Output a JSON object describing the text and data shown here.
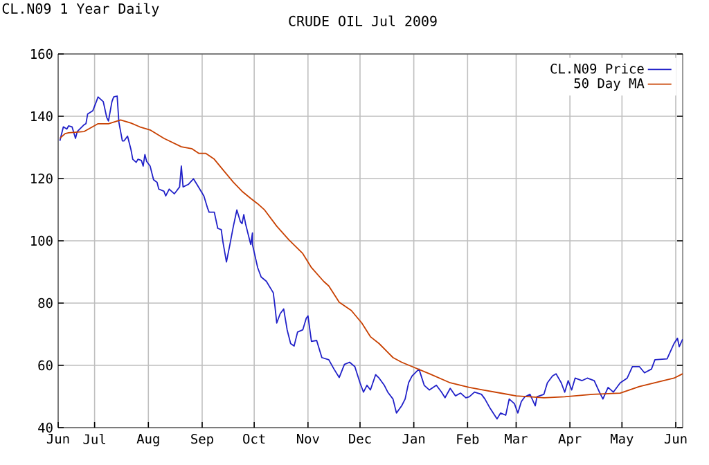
{
  "chart_data": {
    "type": "line",
    "title": "CRUDE OIL Jul 2009",
    "annotations": [
      "CL.N09 1 Year Daily"
    ],
    "xlim": [
      "2008-06-10",
      "2009-06-05"
    ],
    "xticks": [
      {
        "value": "2008-06-10",
        "label": "Jun"
      },
      {
        "value": "2008-07-01",
        "label": "Jul"
      },
      {
        "value": "2008-08-01",
        "label": "Aug"
      },
      {
        "value": "2008-09-01",
        "label": "Sep"
      },
      {
        "value": "2008-10-01",
        "label": "Oct"
      },
      {
        "value": "2008-11-01",
        "label": "Nov"
      },
      {
        "value": "2008-12-01",
        "label": "Dec"
      },
      {
        "value": "2009-01-01",
        "label": "Jan"
      },
      {
        "value": "2009-02-01",
        "label": "Feb"
      },
      {
        "value": "2009-03-01",
        "label": "Mar"
      },
      {
        "value": "2009-04-01",
        "label": "Apr"
      },
      {
        "value": "2009-05-01",
        "label": "May"
      },
      {
        "value": "2009-06-01",
        "label": "Jun"
      }
    ],
    "ylim": [
      40,
      160
    ],
    "yticks": [
      40,
      60,
      80,
      100,
      120,
      140,
      160
    ],
    "grid": true,
    "legend": "top right",
    "series": [
      {
        "name": "CL.N09 Price",
        "color": "#2020c8",
        "x": [
          "2008-06-11",
          "2008-06-12",
          "2008-06-13",
          "2008-06-15",
          "2008-06-16",
          "2008-06-18",
          "2008-06-20",
          "2008-06-21",
          "2008-06-25",
          "2008-06-26",
          "2008-06-27",
          "2008-06-30",
          "2008-07-02",
          "2008-07-03",
          "2008-07-06",
          "2008-07-08",
          "2008-07-09",
          "2008-07-11",
          "2008-07-12",
          "2008-07-14",
          "2008-07-15",
          "2008-07-17",
          "2008-07-18",
          "2008-07-20",
          "2008-07-22",
          "2008-07-23",
          "2008-07-25",
          "2008-07-26",
          "2008-07-28",
          "2008-07-29",
          "2008-07-30",
          "2008-07-31",
          "2008-08-02",
          "2008-08-04",
          "2008-08-06",
          "2008-08-07",
          "2008-08-10",
          "2008-08-11",
          "2008-08-13",
          "2008-08-16",
          "2008-08-19",
          "2008-08-20",
          "2008-08-21",
          "2008-08-24",
          "2008-08-27",
          "2008-08-29",
          "2008-09-02",
          "2008-09-04",
          "2008-09-05",
          "2008-09-08",
          "2008-09-10",
          "2008-09-12",
          "2008-09-13",
          "2008-09-15",
          "2008-09-17",
          "2008-09-19",
          "2008-09-21",
          "2008-09-23",
          "2008-09-24",
          "2008-09-25",
          "2008-09-26",
          "2008-09-29",
          "2008-09-30",
          "2008-09-30",
          "2008-10-03",
          "2008-10-05",
          "2008-10-08",
          "2008-10-12",
          "2008-10-13",
          "2008-10-14",
          "2008-10-16",
          "2008-10-18",
          "2008-10-20",
          "2008-10-22",
          "2008-10-24",
          "2008-10-26",
          "2008-10-29",
          "2008-10-31",
          "2008-11-01",
          "2008-11-03",
          "2008-11-06",
          "2008-11-09",
          "2008-11-13",
          "2008-11-16",
          "2008-11-19",
          "2008-11-22",
          "2008-11-25",
          "2008-11-28",
          "2008-12-01",
          "2008-12-03",
          "2008-12-05",
          "2008-12-07",
          "2008-12-10",
          "2008-12-12",
          "2008-12-15",
          "2008-12-17",
          "2008-12-20",
          "2008-12-22",
          "2008-12-25",
          "2008-12-27",
          "2008-12-29",
          "2008-12-31",
          "2009-01-04",
          "2009-01-07",
          "2009-01-10",
          "2009-01-14",
          "2009-01-17",
          "2009-01-19",
          "2009-01-22",
          "2009-01-25",
          "2009-01-28",
          "2009-01-31",
          "2009-02-02",
          "2009-02-05",
          "2009-02-09",
          "2009-02-11",
          "2009-02-14",
          "2009-02-18",
          "2009-02-20",
          "2009-02-23",
          "2009-02-25",
          "2009-02-28",
          "2009-03-02",
          "2009-03-04",
          "2009-03-06",
          "2009-03-09",
          "2009-03-12",
          "2009-03-13",
          "2009-03-17",
          "2009-03-19",
          "2009-03-22",
          "2009-03-24",
          "2009-03-27",
          "2009-03-29",
          "2009-03-31",
          "2009-04-02",
          "2009-04-04",
          "2009-04-08",
          "2009-04-11",
          "2009-04-15",
          "2009-04-18",
          "2009-04-20",
          "2009-04-23",
          "2009-04-26",
          "2009-04-30",
          "2009-05-04",
          "2009-05-07",
          "2009-05-11",
          "2009-05-14",
          "2009-05-18",
          "2009-05-20",
          "2009-05-27",
          "2009-05-31",
          "2009-06-02",
          "2009-06-03",
          "2009-06-05"
        ],
        "values": [
          132.1,
          134.4,
          136.6,
          135.9,
          136.9,
          136.6,
          132.9,
          135.1,
          137.3,
          137.6,
          140.7,
          141.8,
          144.7,
          146.2,
          144.7,
          139.6,
          138.5,
          144.7,
          146.2,
          146.5,
          138.1,
          132.1,
          132.1,
          133.6,
          129.2,
          126.2,
          125.2,
          126.2,
          125.8,
          124,
          127.7,
          125.5,
          124,
          119.6,
          118.8,
          116.6,
          115.9,
          114.4,
          116.6,
          115.1,
          117.3,
          124,
          117.3,
          118.1,
          119.9,
          118.1,
          114.4,
          110.7,
          109.2,
          109.2,
          104,
          103.6,
          99.6,
          93.2,
          98.8,
          104.7,
          109.9,
          106.2,
          105.5,
          108.4,
          105.5,
          98.8,
          102.5,
          98.8,
          91.4,
          88.4,
          87,
          83.3,
          78.8,
          73.6,
          76.6,
          78.1,
          71.4,
          67,
          66.2,
          70.7,
          71.4,
          75.1,
          75.9,
          67.7,
          68,
          62.5,
          61.8,
          58.8,
          56.1,
          60.3,
          61,
          59.6,
          54.4,
          51.4,
          53.6,
          52.1,
          57,
          55.9,
          53.6,
          51.4,
          49.2,
          44.7,
          47,
          49.2,
          54.4,
          56.6,
          58.8,
          53.6,
          52.1,
          53.6,
          51.4,
          49.6,
          52.6,
          50.2,
          51.1,
          49.6,
          49.9,
          51.4,
          50.7,
          49.2,
          46.2,
          42.8,
          44.7,
          44,
          49.2,
          47.7,
          44.7,
          48.4,
          49.9,
          50.7,
          47,
          49.9,
          50.7,
          54.4,
          56.6,
          57.3,
          54.4,
          51.4,
          55.1,
          52.1,
          55.9,
          55.1,
          55.9,
          55.1,
          51.4,
          49.2,
          52.9,
          51.4,
          54.4,
          55.9,
          59.6,
          59.6,
          57.6,
          58.8,
          61.8,
          62.1,
          67,
          68.7,
          66,
          68.4
        ]
      },
      {
        "name": "50 Day MA",
        "color": "#c84000",
        "x": [
          "2008-06-11",
          "2008-06-14",
          "2008-06-16",
          "2008-06-25",
          "2008-07-03",
          "2008-07-09",
          "2008-07-16",
          "2008-07-22",
          "2008-07-27",
          "2008-08-02",
          "2008-08-10",
          "2008-08-20",
          "2008-08-26",
          "2008-08-30",
          "2008-09-03",
          "2008-09-08",
          "2008-09-13",
          "2008-09-19",
          "2008-09-24",
          "2008-09-29",
          "2008-10-03",
          "2008-10-07",
          "2008-10-14",
          "2008-10-21",
          "2008-10-29",
          "2008-11-03",
          "2008-11-10",
          "2008-11-13",
          "2008-11-19",
          "2008-11-26",
          "2008-12-02",
          "2008-12-07",
          "2008-12-12",
          "2008-12-20",
          "2008-12-25",
          "2008-12-31",
          "2009-01-10",
          "2009-01-22",
          "2009-02-02",
          "2009-02-10",
          "2009-02-21",
          "2009-03-01",
          "2009-03-17",
          "2009-03-29",
          "2009-04-14",
          "2009-04-30",
          "2009-05-11",
          "2009-05-22",
          "2009-05-31",
          "2009-06-05"
        ],
        "values": [
          132.9,
          134.4,
          134.7,
          135.1,
          137.6,
          137.6,
          138.8,
          137.8,
          136.6,
          135.6,
          132.9,
          130.2,
          129.6,
          128.1,
          128.1,
          126.2,
          122.8,
          118.8,
          115.9,
          113.6,
          111.9,
          109.9,
          104.7,
          100.3,
          95.9,
          91.4,
          87,
          85.5,
          80.3,
          77.6,
          73.6,
          69.2,
          67,
          62.5,
          61,
          59.6,
          57.3,
          54.4,
          52.9,
          52.1,
          51,
          50.2,
          49.6,
          49.9,
          50.7,
          51.1,
          53.2,
          54.7,
          55.9,
          57.3
        ]
      }
    ]
  }
}
